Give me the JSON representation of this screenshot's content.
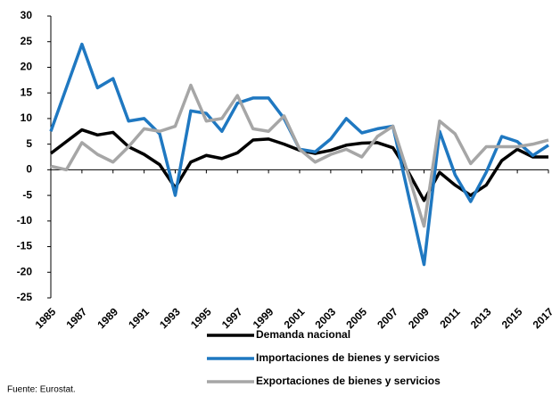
{
  "chart_data": {
    "type": "line",
    "x": [
      1985,
      1986,
      1987,
      1988,
      1989,
      1990,
      1991,
      1992,
      1993,
      1994,
      1995,
      1996,
      1997,
      1998,
      1999,
      2000,
      2001,
      2002,
      2003,
      2004,
      2005,
      2006,
      2007,
      2008,
      2009,
      2010,
      2011,
      2012,
      2013,
      2014,
      2015,
      2016,
      2017
    ],
    "series": [
      {
        "name": "Demanda nacional",
        "color": "#000000",
        "values": [
          3.2,
          5.5,
          7.8,
          6.8,
          7.3,
          4.5,
          3,
          1,
          -3.5,
          1.5,
          2.8,
          2.2,
          3.3,
          5.8,
          6,
          5,
          3.8,
          3.2,
          3.8,
          4.8,
          5.2,
          5.3,
          4.3,
          -0.5,
          -6,
          -0.5,
          -3,
          -5,
          -3,
          1.8,
          4,
          2.5,
          2.5
        ]
      },
      {
        "name": "Importaciones de bienes y servicios",
        "color": "#1f78c1",
        "values": [
          7.5,
          16,
          24.5,
          16,
          17.8,
          9.5,
          10,
          7,
          -5,
          11.5,
          11,
          7.5,
          13,
          14,
          14,
          10,
          4,
          3.5,
          6,
          10,
          7.2,
          8,
          8.5,
          -5,
          -18.5,
          7.5,
          -1,
          -6.2,
          -0.5,
          6.5,
          5.5,
          2.8,
          4.8
        ]
      },
      {
        "name": "Exportaciones de bienes y servicios",
        "color": "#a6a6a6",
        "values": [
          0.7,
          0,
          5.3,
          3,
          1.5,
          4.5,
          8,
          7.5,
          8.5,
          16.5,
          9.5,
          10,
          14.5,
          8,
          7.5,
          10.5,
          4,
          1.5,
          3,
          4,
          2.5,
          6.5,
          8.5,
          -1,
          -11,
          9.5,
          7,
          1.2,
          4.5,
          4.5,
          4.5,
          5,
          5.8
        ]
      }
    ],
    "xlim": [
      1985,
      2017
    ],
    "xticks": [
      1985,
      1987,
      1989,
      1991,
      1993,
      1995,
      1997,
      1999,
      2001,
      2003,
      2005,
      2007,
      2009,
      2011,
      2013,
      2015,
      2017
    ],
    "ylim": [
      -25,
      30
    ],
    "yticks": [
      -25,
      -20,
      -15,
      -10,
      -5,
      0,
      5,
      10,
      15,
      20,
      25,
      30
    ],
    "source": "Fuente: Eurostat."
  }
}
